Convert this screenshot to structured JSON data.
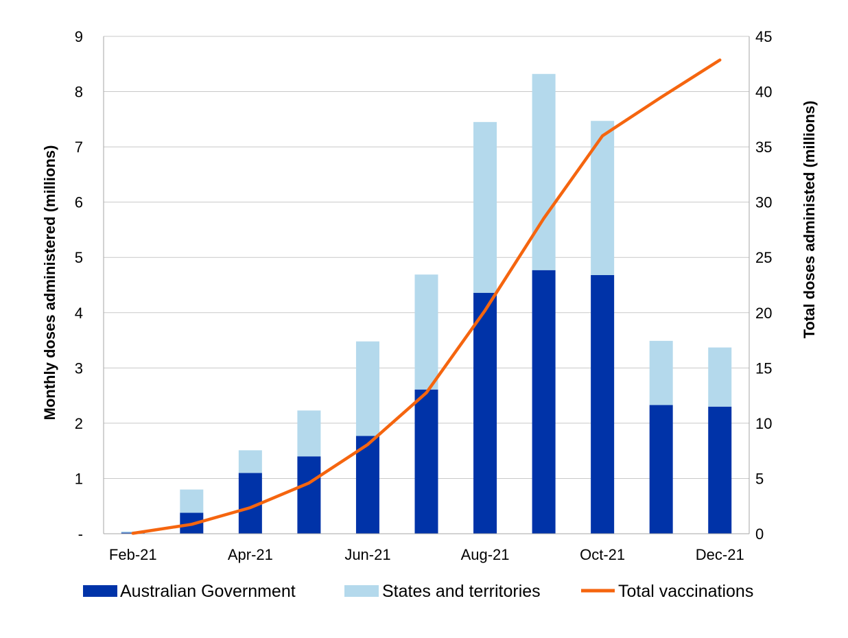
{
  "chart_data": {
    "type": "bar",
    "stacked": true,
    "categories": [
      "Feb-21",
      "Mar-21",
      "Apr-21",
      "May-21",
      "Jun-21",
      "Jul-21",
      "Aug-21",
      "Sep-21",
      "Oct-21",
      "Nov-21",
      "Dec-21"
    ],
    "x_tick_labels": [
      "Feb-21",
      "",
      "Apr-21",
      "",
      "Jun-21",
      "",
      "Aug-21",
      "",
      "Oct-21",
      "",
      "Dec-21"
    ],
    "series": [
      {
        "name": "Australian Government",
        "type": "bar",
        "axis": "left",
        "color": "#0033a8",
        "values": [
          0.02,
          0.38,
          1.1,
          1.4,
          1.77,
          2.61,
          4.36,
          4.77,
          4.68,
          2.33,
          2.3
        ]
      },
      {
        "name": "States and territories",
        "type": "bar",
        "axis": "left",
        "color": "#b4d9ec",
        "values": [
          0.02,
          0.42,
          0.41,
          0.83,
          1.71,
          2.08,
          3.09,
          3.55,
          2.79,
          1.16,
          1.07
        ]
      },
      {
        "name": "Total vaccinations",
        "type": "line",
        "axis": "right",
        "color": "#f5650f",
        "values": [
          0.04,
          0.85,
          2.36,
          4.59,
          8.07,
          12.76,
          20.21,
          28.53,
          36.0,
          39.49,
          42.86
        ]
      }
    ],
    "y_left": {
      "label": "Monthly doses administered (millions)",
      "ylim": [
        0,
        9
      ],
      "ticks": [
        "-",
        "1",
        "2",
        "3",
        "4",
        "5",
        "6",
        "7",
        "8",
        "9"
      ]
    },
    "y_right": {
      "label": "Total doses administed (millions)",
      "ylim": [
        0,
        45
      ],
      "ticks": [
        "0",
        "5",
        "10",
        "15",
        "20",
        "25",
        "30",
        "35",
        "40",
        "45"
      ]
    },
    "grid": "horizontal",
    "legend_position": "bottom"
  }
}
